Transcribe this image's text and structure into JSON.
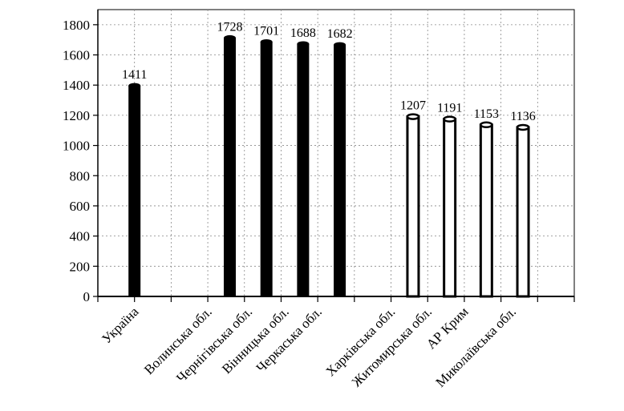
{
  "chart_data": {
    "type": "bar",
    "categories": [
      "Україна",
      "Волинська обл.",
      "Чернігівська обл.",
      "Вінницька обл.",
      "Черкаська обл.",
      "Харківська обл.",
      "Житомирська обл.",
      "АР Крим",
      "Миколаївська обл."
    ],
    "bars": [
      {
        "x": 1,
        "value": 1411,
        "label": "1411",
        "fill": "dark"
      },
      {
        "x": 3.6,
        "value": 1728,
        "label": "1728",
        "fill": "dark"
      },
      {
        "x": 4.6,
        "value": 1701,
        "label": "1701",
        "fill": "dark"
      },
      {
        "x": 5.6,
        "value": 1688,
        "label": "1688",
        "fill": "dark"
      },
      {
        "x": 6.6,
        "value": 1682,
        "label": "1682",
        "fill": "dark"
      },
      {
        "x": 8.6,
        "value": 1207,
        "label": "1207",
        "fill": "light"
      },
      {
        "x": 9.6,
        "value": 1191,
        "label": "1191",
        "fill": "light"
      },
      {
        "x": 10.6,
        "value": 1153,
        "label": "1153",
        "fill": "light"
      },
      {
        "x": 11.6,
        "value": 1136,
        "label": "1136",
        "fill": "light"
      }
    ],
    "category_label_x": [
      1,
      3.0,
      4.1,
      5.1,
      6.0,
      8.0,
      9.0,
      10.0,
      11.3
    ],
    "xlim": [
      0,
      13
    ],
    "yticks": [
      "0",
      "200",
      "400",
      "600",
      "800",
      "1000",
      "1200",
      "1400",
      "1600",
      "1800"
    ],
    "ylim": [
      0,
      1900
    ],
    "grid": true,
    "colors": {
      "dark": "#000000",
      "light": "#ffffff",
      "grid": "#888888"
    }
  }
}
